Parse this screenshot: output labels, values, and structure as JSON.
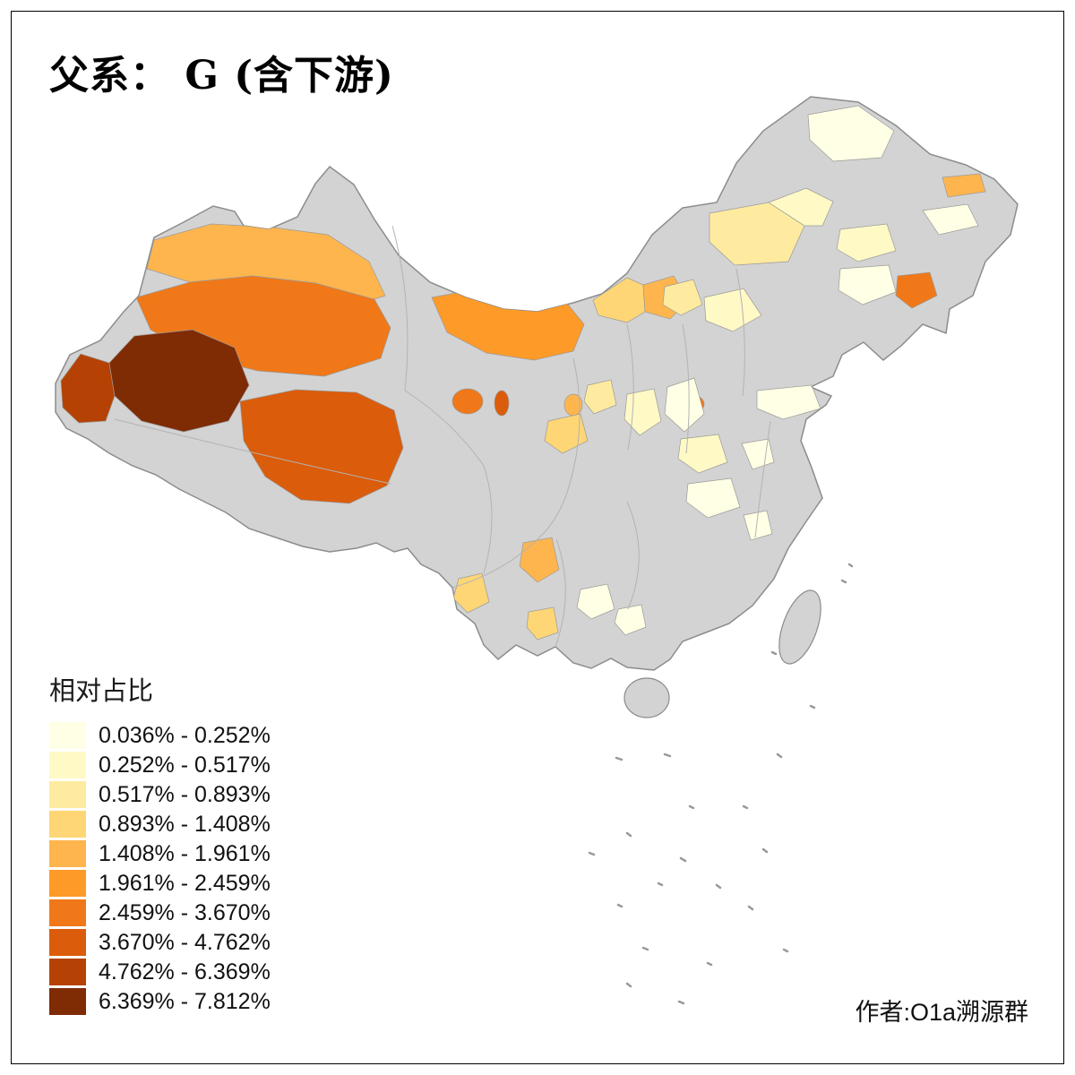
{
  "page": {
    "background": "#ffffff",
    "frame_color": "#000000"
  },
  "title": "父系： G (含下游)",
  "legend": {
    "title": "相对占比",
    "bins": [
      {
        "label": "0.036% - 0.252%",
        "color": "#FFFFE5"
      },
      {
        "label": "0.252% - 0.517%",
        "color": "#FFF9C6"
      },
      {
        "label": "0.517% - 0.893%",
        "color": "#FEEB9F"
      },
      {
        "label": "0.893% - 1.408%",
        "color": "#FED676"
      },
      {
        "label": "1.408% - 1.961%",
        "color": "#FEB54E"
      },
      {
        "label": "1.961% - 2.459%",
        "color": "#FD9A28"
      },
      {
        "label": "2.459% - 3.670%",
        "color": "#F07818"
      },
      {
        "label": "3.670% - 4.762%",
        "color": "#DB5C0B"
      },
      {
        "label": "4.762% - 6.369%",
        "color": "#B54204"
      },
      {
        "label": "6.369% - 7.812%",
        "color": "#7F2B04"
      }
    ]
  },
  "credit": "作者:O1a溯源群",
  "map": {
    "no_data_color": "#d3d3d3",
    "border_color": "#8c8c8c",
    "inner_border_color": "#b3b3b3",
    "island_mark_color": "#999999"
  },
  "chart_data": {
    "type": "choropleth",
    "region": "China, prefecture-level divisions",
    "title": "父系： G (含下游)",
    "legend_title": "相对占比",
    "value_range": [
      "0.036%",
      "7.812%"
    ],
    "classes": [
      "0.036% - 0.252%",
      "0.252% - 0.517%",
      "0.517% - 0.893%",
      "0.893% - 1.408%",
      "1.408% - 1.961%",
      "1.961% - 2.459%",
      "2.459% - 3.670%",
      "3.670% - 4.762%",
      "4.762% - 6.369%",
      "6.369% - 7.812%"
    ],
    "palette": [
      "#FFFFE5",
      "#FFF9C6",
      "#FEEB9F",
      "#FED676",
      "#FEB54E",
      "#FD9A28",
      "#F07818",
      "#DB5C0B",
      "#B54204",
      "#7F2B04"
    ],
    "no_data_color": "#d3d3d3",
    "legend_position": "bottom-left"
  }
}
